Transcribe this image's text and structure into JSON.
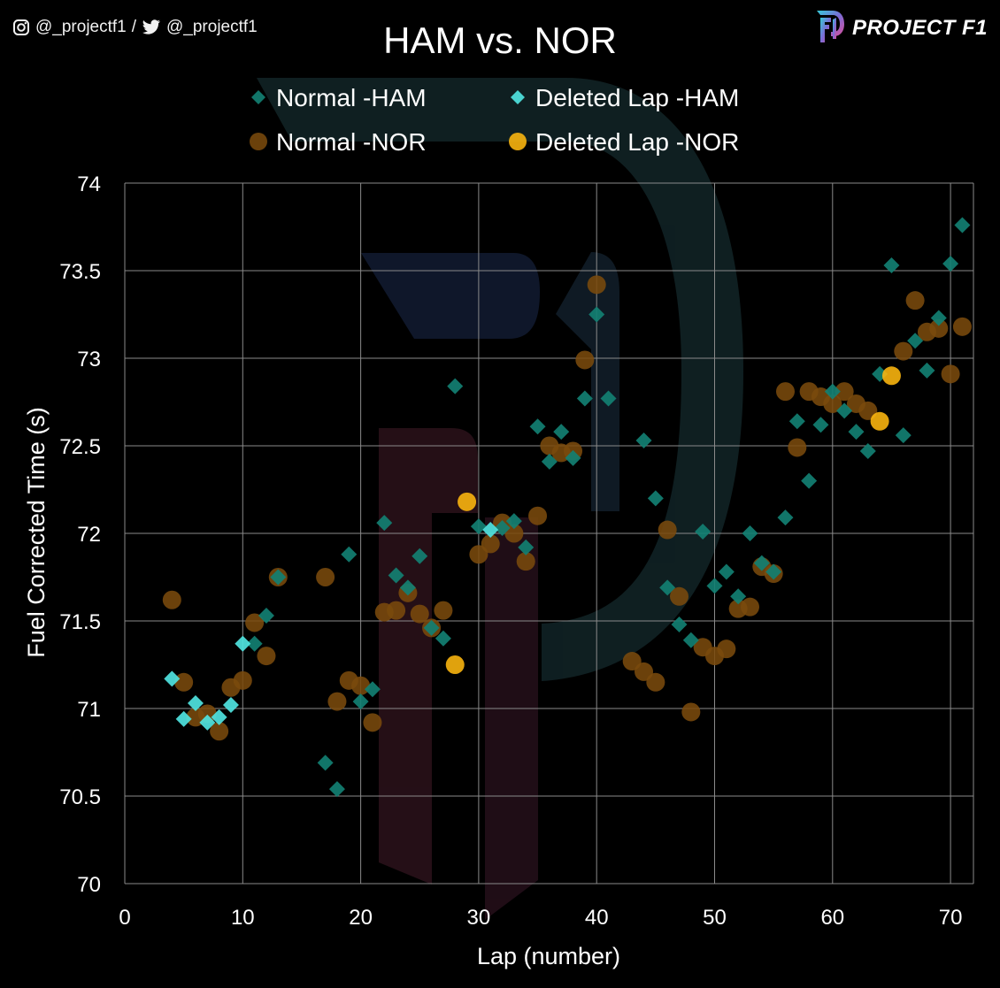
{
  "header": {
    "instagram_handle": "@_projectf1",
    "separator": "/",
    "twitter_handle": "@_projectf1",
    "brand": "PROJECT F1"
  },
  "chart_data": {
    "type": "scatter",
    "title": "HAM vs. NOR",
    "xlabel": "Lap (number)",
    "ylabel": "Fuel Corrected Time (s)",
    "xlim": [
      0,
      72
    ],
    "ylim": [
      70,
      74
    ],
    "xticks": [
      0,
      10,
      20,
      30,
      40,
      50,
      60,
      70
    ],
    "yticks": [
      70,
      70.5,
      71,
      71.5,
      72,
      72.5,
      73,
      73.5,
      74
    ],
    "grid": true,
    "legend_position": "top",
    "series": [
      {
        "name": "Normal -HAM",
        "marker": "diamond",
        "color": "#127f72",
        "points": [
          [
            11,
            71.37
          ],
          [
            12,
            71.53
          ],
          [
            13,
            71.75
          ],
          [
            17,
            70.69
          ],
          [
            18,
            70.54
          ],
          [
            19,
            71.88
          ],
          [
            20,
            71.04
          ],
          [
            21,
            71.11
          ],
          [
            22,
            72.06
          ],
          [
            23,
            71.76
          ],
          [
            24,
            71.69
          ],
          [
            25,
            71.87
          ],
          [
            26,
            71.46
          ],
          [
            27,
            71.4
          ],
          [
            28,
            72.84
          ],
          [
            30,
            72.04
          ],
          [
            32,
            72.03
          ],
          [
            33,
            72.07
          ],
          [
            34,
            71.92
          ],
          [
            35,
            72.61
          ],
          [
            36,
            72.41
          ],
          [
            37,
            72.58
          ],
          [
            38,
            72.43
          ],
          [
            39,
            72.77
          ],
          [
            40,
            73.25
          ],
          [
            41,
            72.77
          ],
          [
            44,
            72.53
          ],
          [
            45,
            72.2
          ],
          [
            46,
            71.69
          ],
          [
            47,
            71.48
          ],
          [
            48,
            71.39
          ],
          [
            49,
            72.01
          ],
          [
            50,
            71.7
          ],
          [
            51,
            71.78
          ],
          [
            52,
            71.64
          ],
          [
            53,
            72.0
          ],
          [
            54,
            71.83
          ],
          [
            55,
            71.78
          ],
          [
            56,
            72.09
          ],
          [
            57,
            72.64
          ],
          [
            58,
            72.3
          ],
          [
            59,
            72.62
          ],
          [
            60,
            72.81
          ],
          [
            61,
            72.7
          ],
          [
            62,
            72.58
          ],
          [
            63,
            72.47
          ],
          [
            64,
            72.91
          ],
          [
            65,
            73.53
          ],
          [
            66,
            72.56
          ],
          [
            67,
            73.1
          ],
          [
            68,
            72.93
          ],
          [
            69,
            73.23
          ],
          [
            70,
            73.54
          ],
          [
            71,
            73.76
          ]
        ]
      },
      {
        "name": "Deleted Lap -HAM",
        "marker": "diamond",
        "color": "#4fe3e0",
        "points": [
          [
            4,
            71.17
          ],
          [
            5,
            70.94
          ],
          [
            6,
            71.03
          ],
          [
            7,
            70.92
          ],
          [
            8,
            70.95
          ],
          [
            9,
            71.02
          ],
          [
            10,
            71.37
          ],
          [
            31,
            72.02
          ]
        ]
      },
      {
        "name": "Normal -NOR",
        "marker": "circle",
        "color": "#7a4a0c",
        "points": [
          [
            4,
            71.62
          ],
          [
            5,
            71.15
          ],
          [
            6,
            70.95
          ],
          [
            7,
            70.97
          ],
          [
            8,
            70.87
          ],
          [
            9,
            71.12
          ],
          [
            10,
            71.16
          ],
          [
            11,
            71.49
          ],
          [
            12,
            71.3
          ],
          [
            13,
            71.75
          ],
          [
            17,
            71.75
          ],
          [
            18,
            71.04
          ],
          [
            19,
            71.16
          ],
          [
            20,
            71.13
          ],
          [
            21,
            70.92
          ],
          [
            22,
            71.55
          ],
          [
            23,
            71.56
          ],
          [
            24,
            71.66
          ],
          [
            25,
            71.54
          ],
          [
            26,
            71.46
          ],
          [
            27,
            71.56
          ],
          [
            30,
            71.88
          ],
          [
            31,
            71.94
          ],
          [
            32,
            72.06
          ],
          [
            33,
            72.0
          ],
          [
            34,
            71.84
          ],
          [
            35,
            72.1
          ],
          [
            36,
            72.5
          ],
          [
            37,
            72.46
          ],
          [
            38,
            72.47
          ],
          [
            39,
            72.99
          ],
          [
            40,
            73.42
          ],
          [
            43,
            71.27
          ],
          [
            44,
            71.21
          ],
          [
            45,
            71.15
          ],
          [
            46,
            72.02
          ],
          [
            47,
            71.64
          ],
          [
            48,
            70.98
          ],
          [
            49,
            71.35
          ],
          [
            50,
            71.3
          ],
          [
            51,
            71.34
          ],
          [
            52,
            71.57
          ],
          [
            53,
            71.58
          ],
          [
            54,
            71.81
          ],
          [
            55,
            71.77
          ],
          [
            56,
            72.81
          ],
          [
            57,
            72.49
          ],
          [
            58,
            72.81
          ],
          [
            59,
            72.78
          ],
          [
            60,
            72.74
          ],
          [
            61,
            72.81
          ],
          [
            62,
            72.74
          ],
          [
            63,
            72.7
          ],
          [
            66,
            73.04
          ],
          [
            67,
            73.33
          ],
          [
            68,
            73.15
          ],
          [
            69,
            73.17
          ],
          [
            70,
            72.91
          ],
          [
            71,
            73.18
          ]
        ]
      },
      {
        "name": "Deleted Lap -NOR",
        "marker": "circle",
        "color": "#ffb80f",
        "points": [
          [
            28,
            71.25
          ],
          [
            29,
            72.18
          ],
          [
            64,
            72.64
          ],
          [
            65,
            72.9
          ]
        ]
      }
    ]
  }
}
